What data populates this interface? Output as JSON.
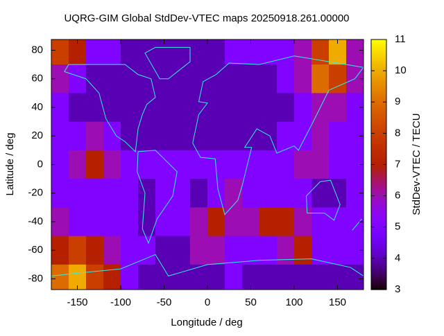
{
  "chart_data": {
    "type": "heatmap",
    "title": "UQRG-GIM Global StdDev-VTEC maps 20250918.261.00000",
    "x_label": "Longitude / deg",
    "y_label": "Latitude / deg",
    "colorbar_label": "StdDev-VTEC / TECU",
    "colormap": "gnuplot",
    "x": [
      -170,
      -150,
      -130,
      -110,
      -90,
      -70,
      -50,
      -30,
      -10,
      10,
      30,
      50,
      70,
      90,
      110,
      130,
      150,
      170
    ],
    "y": [
      80,
      60,
      40,
      20,
      0,
      -20,
      -40,
      -60,
      -80
    ],
    "z": [
      [
        8,
        7,
        5,
        5,
        4,
        4,
        4,
        4,
        4,
        4,
        5,
        5,
        5,
        5,
        6,
        8,
        10,
        6
      ],
      [
        6,
        5,
        4,
        4,
        4,
        4,
        4,
        4,
        4,
        4,
        4,
        4,
        4,
        5,
        6,
        9,
        8,
        6
      ],
      [
        5,
        4,
        4,
        4,
        4,
        4,
        4,
        4,
        4,
        4,
        4,
        4,
        4,
        4,
        5,
        6,
        6,
        5
      ],
      [
        5,
        5,
        6,
        5,
        4,
        4,
        4,
        4,
        4,
        4,
        4,
        4,
        4,
        5,
        5,
        6,
        5,
        5
      ],
      [
        5,
        6,
        7,
        6,
        5,
        5,
        5,
        5,
        5,
        5,
        5,
        5,
        5,
        5,
        6,
        6,
        5,
        5
      ],
      [
        5,
        5,
        5,
        5,
        5,
        4,
        5,
        5,
        4,
        5,
        6,
        5,
        5,
        5,
        5,
        4,
        4,
        5
      ],
      [
        6,
        5,
        5,
        5,
        5,
        4,
        5,
        5,
        6,
        7,
        6,
        6,
        7,
        7,
        6,
        5,
        5,
        5
      ],
      [
        7,
        8,
        7,
        6,
        5,
        5,
        4,
        4,
        6,
        6,
        5,
        5,
        5,
        6,
        7,
        5,
        5,
        5
      ],
      [
        9,
        10,
        8,
        7,
        5,
        4,
        4,
        4,
        4,
        4,
        5,
        4,
        4,
        4,
        4,
        4,
        4,
        4
      ]
    ],
    "xlim": [
      -180,
      180
    ],
    "ylim": [
      -87.5,
      87.5
    ],
    "cblim": [
      3,
      11
    ],
    "xticks": [
      -150,
      -100,
      -50,
      0,
      50,
      100,
      150
    ],
    "yticks": [
      -80,
      -60,
      -40,
      -20,
      0,
      20,
      40,
      60,
      80
    ],
    "cbticks": [
      3,
      4,
      5,
      6,
      7,
      8,
      9,
      10,
      11
    ]
  }
}
